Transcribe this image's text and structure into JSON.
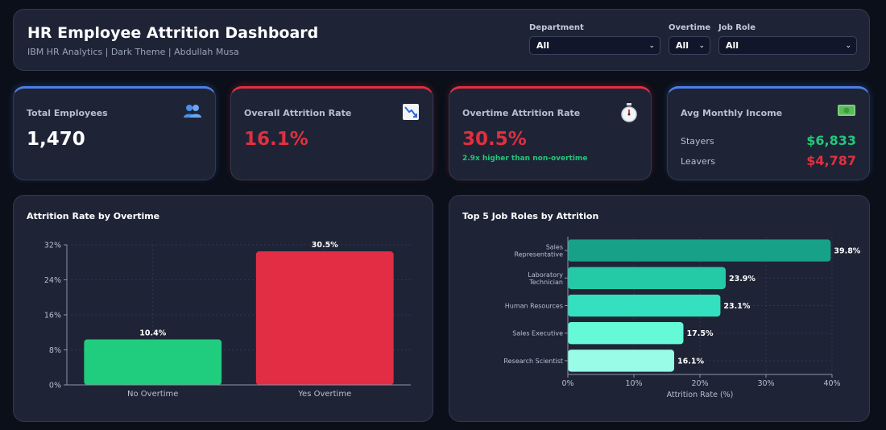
{
  "header": {
    "title": "HR Employee Attrition Dashboard",
    "subtitle": "IBM HR Analytics | Dark Theme | Abdullah Musa"
  },
  "filters": {
    "department": {
      "label": "Department",
      "value": "All"
    },
    "overtime": {
      "label": "Overtime",
      "value": "All"
    },
    "job_role": {
      "label": "Job Role",
      "value": "All"
    }
  },
  "kpis": {
    "total": {
      "label": "Total Employees",
      "value": "1,470",
      "icon": "people-icon"
    },
    "attrition": {
      "label": "Overall Attrition Rate",
      "value": "16.1%",
      "icon": "chart-down-icon"
    },
    "overtime": {
      "label": "Overtime Attrition Rate",
      "value": "30.5%",
      "note": "2.9x higher than non-overtime",
      "icon": "stopwatch-icon"
    },
    "income": {
      "label": "Avg Monthly Income",
      "stayers_label": "Stayers",
      "stayers_value": "$6,833",
      "leavers_label": "Leavers",
      "leavers_value": "$4,787",
      "icon": "money-icon"
    }
  },
  "colors": {
    "accent_blue": "#4c7fe6",
    "accent_red": "#e0303f",
    "green": "#22c77a",
    "red": "#e0303f"
  },
  "chart_data": [
    {
      "type": "bar",
      "title": "Attrition Rate by Overtime",
      "categories": [
        "No Overtime",
        "Yes Overtime"
      ],
      "values": [
        10.4,
        30.5
      ],
      "data_labels": [
        "10.4%",
        "30.5%"
      ],
      "colors": [
        "#20cc7e",
        "#e32d44"
      ],
      "ylim": [
        0,
        32
      ],
      "yticks": [
        0,
        8,
        16,
        24,
        32
      ],
      "ytick_labels": [
        "0%",
        "8%",
        "16%",
        "24%",
        "32%"
      ],
      "grid": true
    },
    {
      "type": "bar",
      "orientation": "horizontal",
      "title": "Top 5 Job Roles by Attrition",
      "categories": [
        "Sales Representative",
        "Laboratory Technician",
        "Human Resources",
        "Sales Executive",
        "Research Scientist"
      ],
      "category_lines": [
        [
          "Sales",
          "Representative"
        ],
        [
          "Laboratory",
          "Technician"
        ],
        [
          "Human Resources"
        ],
        [
          "Sales Executive"
        ],
        [
          "Research Scientist"
        ]
      ],
      "values": [
        39.8,
        23.9,
        23.1,
        17.5,
        16.1
      ],
      "data_labels": [
        "39.8%",
        "23.9%",
        "23.1%",
        "17.5%",
        "16.1%"
      ],
      "colors": [
        "#18a189",
        "#24c9a6",
        "#33e0bf",
        "#66f9d7",
        "#98fce6"
      ],
      "xlim": [
        0,
        40
      ],
      "xticks": [
        0,
        10,
        20,
        30,
        40
      ],
      "xtick_labels": [
        "0%",
        "10%",
        "20%",
        "30%",
        "40%"
      ],
      "xlabel": "Attrition Rate (%)",
      "grid": true
    }
  ]
}
